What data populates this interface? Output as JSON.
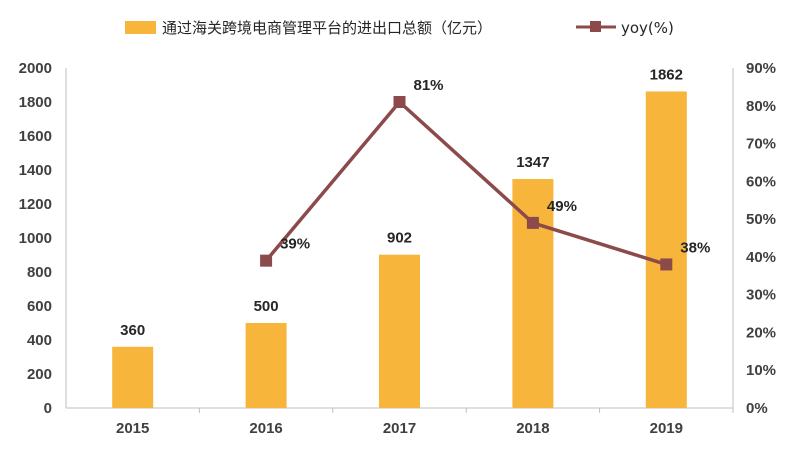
{
  "chart_data": {
    "type": "bar",
    "categories": [
      "2015",
      "2016",
      "2017",
      "2018",
      "2019"
    ],
    "series": [
      {
        "name": "通过海关跨境电商管理平台的进出口总额（亿元）",
        "type": "bar",
        "axis": "left",
        "values": [
          360,
          500,
          902,
          1347,
          1862
        ],
        "labels": [
          "360",
          "500",
          "902",
          "1347",
          "1862"
        ],
        "color": "#F7B53B"
      },
      {
        "name": "yoy(%)",
        "type": "line",
        "axis": "right",
        "values": [
          null,
          39,
          81,
          49,
          38
        ],
        "labels": [
          "",
          "39%",
          "81%",
          "49%",
          "38%"
        ],
        "color": "#8C4A4A"
      }
    ],
    "y_left": {
      "min": 0,
      "max": 2000,
      "step": 200,
      "ticks": [
        "0",
        "200",
        "400",
        "600",
        "800",
        "1000",
        "1200",
        "1400",
        "1600",
        "1800",
        "2000"
      ]
    },
    "y_right": {
      "min": 0,
      "max": 90,
      "step": 10,
      "ticks": [
        "0%",
        "10%",
        "20%",
        "30%",
        "40%",
        "50%",
        "60%",
        "70%",
        "80%",
        "90%"
      ]
    },
    "grid": false,
    "legend": "top"
  }
}
